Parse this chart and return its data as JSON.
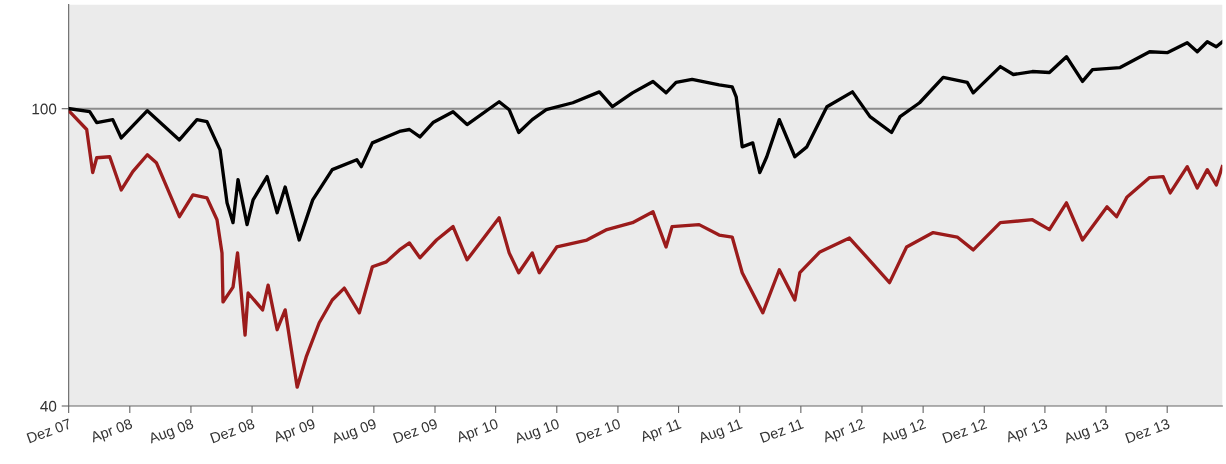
{
  "chart_data": {
    "type": "line",
    "xlim": [
      "2007-12-01",
      "2014-03-21"
    ],
    "ylim": [
      40,
      121
    ],
    "yticks": [
      40,
      100
    ],
    "xticks": [
      {
        "value": "2007-12-01",
        "label": "Dez 07"
      },
      {
        "value": "2008-04-01",
        "label": "Apr 08"
      },
      {
        "value": "2008-08-01",
        "label": "Aug 08"
      },
      {
        "value": "2008-12-01",
        "label": "Dez 08"
      },
      {
        "value": "2009-04-01",
        "label": "Apr 09"
      },
      {
        "value": "2009-08-01",
        "label": "Aug 09"
      },
      {
        "value": "2009-12-01",
        "label": "Dez 09"
      },
      {
        "value": "2010-04-01",
        "label": "Apr 10"
      },
      {
        "value": "2010-08-01",
        "label": "Aug 10"
      },
      {
        "value": "2010-12-01",
        "label": "Dez 10"
      },
      {
        "value": "2011-04-01",
        "label": "Apr 11"
      },
      {
        "value": "2011-08-01",
        "label": "Aug 11"
      },
      {
        "value": "2011-12-01",
        "label": "Dez 11"
      },
      {
        "value": "2012-04-01",
        "label": "Apr 12"
      },
      {
        "value": "2012-08-01",
        "label": "Aug 12"
      },
      {
        "value": "2012-12-01",
        "label": "Dez 12"
      },
      {
        "value": "2013-04-01",
        "label": "Apr 13"
      },
      {
        "value": "2013-08-01",
        "label": "Aug 13"
      },
      {
        "value": "2013-12-01",
        "label": "Dez 13"
      }
    ],
    "grid": false,
    "marker": "none",
    "line_style": "solid",
    "ref_lines": [
      {
        "axis": "y",
        "value": 100,
        "color": "#8c8c8c",
        "line_style": "solid"
      }
    ],
    "series": [
      {
        "color": "#9b1b1b",
        "x": [
          "2007-12-03",
          "2008-01-06",
          "2008-01-18",
          "2008-01-26",
          "2008-02-21",
          "2008-03-15",
          "2008-04-07",
          "2008-05-06",
          "2008-05-24",
          "2008-07-09",
          "2008-08-05",
          "2008-09-02",
          "2008-09-22",
          "2008-10-02",
          "2008-10-04",
          "2008-10-24",
          "2008-11-02",
          "2008-11-17",
          "2008-11-23",
          "2008-12-22",
          "2009-01-02",
          "2009-01-20",
          "2009-02-05",
          "2009-03-01",
          "2009-03-19",
          "2009-04-14",
          "2009-05-10",
          "2009-06-03",
          "2009-07-03",
          "2009-07-29",
          "2009-08-26",
          "2009-09-21",
          "2009-10-11",
          "2009-11-01",
          "2009-12-04",
          "2010-01-06",
          "2010-02-03",
          "2010-04-08",
          "2010-04-28",
          "2010-05-17",
          "2010-06-13",
          "2010-06-27",
          "2010-08-01",
          "2010-09-30",
          "2010-11-09",
          "2010-12-30",
          "2011-02-09",
          "2011-03-07",
          "2011-03-19",
          "2011-05-12",
          "2011-06-21",
          "2011-07-17",
          "2011-08-06",
          "2011-09-16",
          "2011-10-19",
          "2011-11-19",
          "2011-11-29",
          "2012-01-08",
          "2012-03-07",
          "2012-04-10",
          "2012-05-26",
          "2012-06-29",
          "2012-08-21",
          "2012-10-08",
          "2012-11-09",
          "2013-01-02",
          "2013-03-07",
          "2013-04-10",
          "2013-05-14",
          "2013-06-15",
          "2013-08-03",
          "2013-08-22",
          "2013-09-12",
          "2013-10-27",
          "2013-11-23",
          "2013-12-07",
          "2014-01-10",
          "2014-01-30",
          "2014-02-19",
          "2014-03-09",
          "2014-03-21"
        ],
        "values": [
          99.4,
          95.8,
          87.1,
          90.1,
          90.3,
          83.6,
          87.3,
          90.7,
          89.1,
          78.2,
          82.6,
          82.0,
          77.6,
          70.9,
          61.0,
          64.0,
          70.9,
          54.3,
          62.8,
          59.4,
          64.4,
          55.4,
          59.4,
          43.8,
          49.9,
          56.8,
          61.4,
          63.8,
          58.8,
          68.1,
          69.1,
          71.5,
          72.9,
          69.9,
          73.5,
          76.2,
          69.5,
          78.0,
          70.9,
          66.9,
          70.9,
          66.9,
          72.1,
          73.5,
          75.6,
          77.0,
          79.2,
          72.1,
          76.2,
          76.6,
          74.5,
          74.1,
          66.9,
          58.8,
          67.5,
          61.4,
          66.9,
          71.1,
          73.9,
          70.1,
          64.9,
          72.1,
          75.0,
          74.1,
          71.5,
          77.0,
          77.6,
          75.6,
          81.0,
          73.5,
          80.2,
          78.2,
          82.2,
          86.1,
          86.3,
          83.0,
          88.3,
          84.0,
          87.7,
          84.6,
          88.3
        ]
      },
      {
        "color": "#000000",
        "x": [
          "2007-12-03",
          "2008-01-12",
          "2008-01-26",
          "2008-02-27",
          "2008-03-15",
          "2008-05-06",
          "2008-07-09",
          "2008-08-13",
          "2008-09-02",
          "2008-09-28",
          "2008-10-12",
          "2008-10-24",
          "2008-11-03",
          "2008-11-21",
          "2008-12-03",
          "2008-12-31",
          "2009-01-20",
          "2009-02-05",
          "2009-03-05",
          "2009-04-01",
          "2009-05-10",
          "2009-06-28",
          "2009-07-07",
          "2009-07-29",
          "2009-09-21",
          "2009-10-11",
          "2009-11-01",
          "2009-11-27",
          "2010-01-06",
          "2010-02-03",
          "2010-04-08",
          "2010-04-28",
          "2010-05-17",
          "2010-06-13",
          "2010-07-11",
          "2010-09-02",
          "2010-10-25",
          "2010-11-20",
          "2010-12-30",
          "2011-02-09",
          "2011-03-07",
          "2011-03-27",
          "2011-04-28",
          "2011-06-21",
          "2011-07-17",
          "2011-07-25",
          "2011-08-06",
          "2011-08-27",
          "2011-09-10",
          "2011-09-24",
          "2011-10-19",
          "2011-11-19",
          "2011-12-13",
          "2012-01-22",
          "2012-03-13",
          "2012-04-17",
          "2012-05-30",
          "2012-06-16",
          "2012-07-25",
          "2012-09-10",
          "2012-10-28",
          "2012-11-09",
          "2013-01-02",
          "2013-01-28",
          "2013-03-07",
          "2013-04-10",
          "2013-05-14",
          "2013-06-15",
          "2013-07-05",
          "2013-08-29",
          "2013-10-27",
          "2013-12-01",
          "2014-01-10",
          "2014-01-30",
          "2014-02-19",
          "2014-03-09",
          "2014-03-21"
        ],
        "values": [
          100.0,
          99.4,
          97.2,
          97.8,
          94.1,
          99.6,
          93.7,
          97.8,
          97.4,
          91.7,
          81.0,
          77.0,
          85.7,
          76.6,
          81.6,
          86.3,
          79.0,
          84.2,
          73.5,
          81.6,
          87.7,
          89.7,
          88.3,
          93.1,
          95.4,
          95.8,
          94.3,
          97.2,
          99.4,
          96.8,
          101.4,
          99.8,
          95.2,
          97.8,
          99.8,
          101.2,
          103.4,
          100.4,
          103.2,
          105.5,
          103.2,
          105.3,
          105.9,
          104.8,
          104.4,
          102.4,
          92.3,
          93.1,
          87.1,
          90.3,
          97.8,
          90.3,
          92.3,
          100.4,
          103.4,
          98.4,
          95.2,
          98.4,
          101.2,
          106.3,
          105.3,
          103.2,
          108.5,
          106.9,
          107.5,
          107.3,
          110.5,
          105.5,
          107.9,
          108.3,
          111.5,
          111.3,
          113.3,
          111.5,
          113.5,
          112.5,
          113.5
        ]
      }
    ]
  }
}
